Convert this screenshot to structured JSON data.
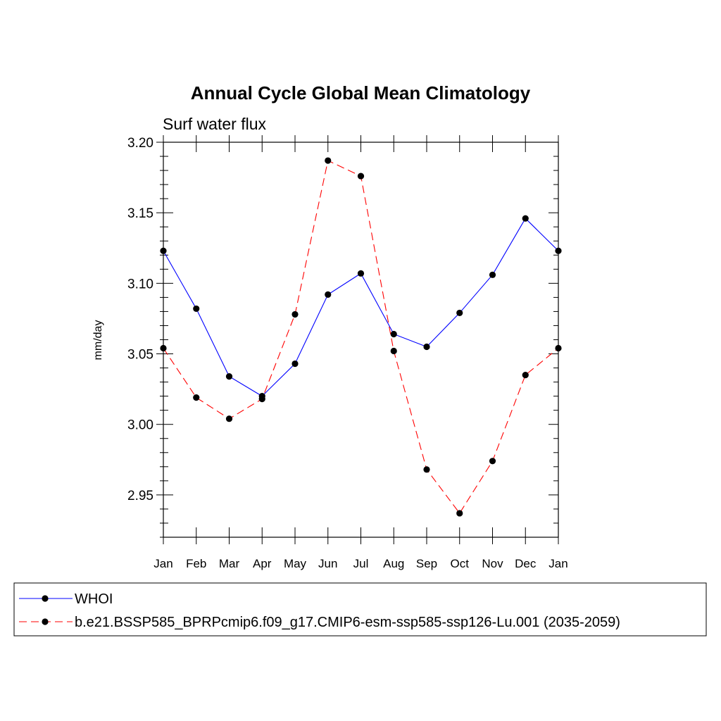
{
  "chart_data": {
    "type": "line",
    "title": "Annual Cycle Global Mean Climatology",
    "subtitle": "Surf water flux",
    "xlabel": "",
    "ylabel": "mm/day",
    "categories": [
      "Jan",
      "Feb",
      "Mar",
      "Apr",
      "May",
      "Jun",
      "Jul",
      "Aug",
      "Sep",
      "Oct",
      "Nov",
      "Dec",
      "Jan"
    ],
    "ylim": [
      2.92,
      3.2
    ],
    "yticks": [
      2.95,
      3.0,
      3.05,
      3.1,
      3.15,
      3.2
    ],
    "ytick_labels": [
      "2.95",
      "3.00",
      "3.05",
      "3.10",
      "3.15",
      "3.20"
    ],
    "series": [
      {
        "name": "WHOI",
        "color": "#0000ff",
        "dash": "solid",
        "values": [
          3.123,
          3.082,
          3.034,
          3.02,
          3.043,
          3.092,
          3.107,
          3.064,
          3.055,
          3.079,
          3.106,
          3.146,
          3.123
        ]
      },
      {
        "name": "b.e21.BSSP585_BPRPcmip6.f09_g17.CMIP6-esm-ssp585-ssp126-Lu.001 (2035-2059)",
        "color": "#ff0000",
        "dash": "dashed",
        "values": [
          3.054,
          3.019,
          3.004,
          3.018,
          3.078,
          3.187,
          3.176,
          3.052,
          2.968,
          2.937,
          2.974,
          3.035,
          3.054
        ]
      }
    ],
    "legend": "bottom",
    "grid": false
  }
}
